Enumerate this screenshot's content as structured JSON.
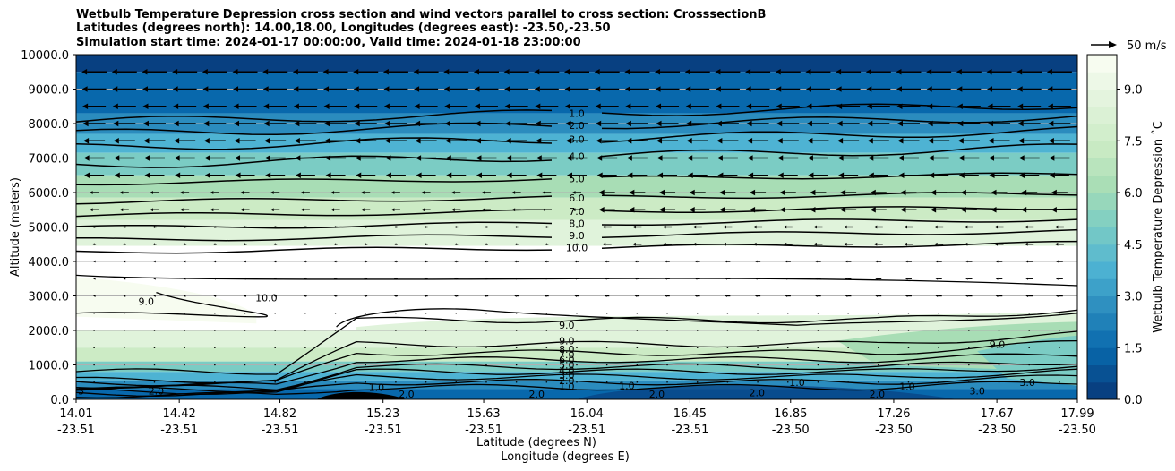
{
  "chart_data": {
    "type": "contour",
    "title_lines": [
      "Wetbulb Temperature Depression cross section and wind vectors parallel to cross section: CrosssectionB",
      "Latitudes (degrees north): 14.00,18.00, Longitudes (degrees east): -23.50,-23.50",
      "Simulation start time: 2024-01-17 00:00:00, Valid time: 2024-01-18 23:00:00"
    ],
    "ylabel": "Altitude (meters)",
    "xlabel_line1": "Latitude (degrees N)",
    "xlabel_line2": "Longitude (degrees E)",
    "ylim": [
      0,
      10000
    ],
    "y_ticks": [
      "0.0",
      "1000.0",
      "2000.0",
      "3000.0",
      "4000.0",
      "5000.0",
      "6000.0",
      "7000.0",
      "8000.0",
      "9000.0",
      "10000.0"
    ],
    "y_tick_values": [
      0,
      1000,
      2000,
      3000,
      4000,
      5000,
      6000,
      7000,
      8000,
      9000,
      10000
    ],
    "x_ticks_lat": [
      "14.01",
      "14.42",
      "14.82",
      "15.23",
      "15.63",
      "16.04",
      "16.45",
      "16.85",
      "17.26",
      "17.67",
      "17.99"
    ],
    "x_ticks_lon": [
      "-23.51",
      "-23.51",
      "-23.51",
      "-23.51",
      "-23.51",
      "-23.51",
      "-23.51",
      "-23.50",
      "-23.50",
      "-23.50",
      "-23.50"
    ],
    "x_tick_values": [
      14.01,
      14.42,
      14.82,
      15.23,
      15.63,
      16.04,
      16.45,
      16.85,
      17.26,
      17.67,
      17.99
    ],
    "xlim": [
      14.01,
      17.99
    ],
    "grid": "horizontal",
    "colorbar": {
      "label": "Wetbulb Temperature Depression ˚C",
      "ticks": [
        "0.0",
        "1.5",
        "3.0",
        "4.5",
        "6.0",
        "7.5",
        "9.0"
      ],
      "tick_values": [
        0,
        1.5,
        3.0,
        4.5,
        6.0,
        7.5,
        9.0
      ],
      "range": [
        0,
        10
      ],
      "colors": [
        "#084081",
        "#0868ac",
        "#2b8cbe",
        "#4eb3d3",
        "#7bccc4",
        "#a8ddb5",
        "#ccebc5",
        "#e0f3db",
        "#f7fcf0"
      ]
    },
    "vector_key_label": "50 m/s",
    "upper_contours": [
      {
        "label": "1.0",
        "alt": 8300
      },
      {
        "label": "2.0",
        "alt": 7950
      },
      {
        "label": "3.0",
        "alt": 7550
      },
      {
        "label": "4.0",
        "alt": 7050
      },
      {
        "label": "5.0",
        "alt": 6400
      },
      {
        "label": "6.0",
        "alt": 5850
      },
      {
        "label": "7.0",
        "alt": 5450
      },
      {
        "label": "8.0",
        "alt": 5100
      },
      {
        "label": "9.0",
        "alt": 4750
      },
      {
        "label": "10.0",
        "alt": 4400
      }
    ],
    "lower_contour_labels": [
      "9.0",
      "9.0",
      "8.0",
      "7.0",
      "6.0",
      "5.0",
      "4.0",
      "3.0",
      "2.0",
      "1.0",
      "2.0",
      "2.0",
      "2.0",
      "2.0",
      "1.0",
      "1.0",
      "1.0",
      "2.0",
      "1.0",
      "3.0",
      "3.0",
      "2.0",
      "10.0",
      "9.0",
      "9.0",
      "3"
    ]
  }
}
